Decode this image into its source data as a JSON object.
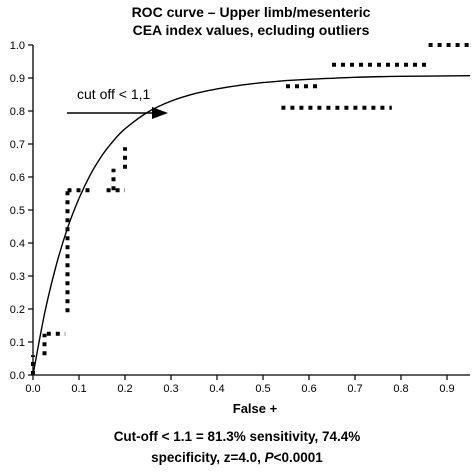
{
  "title": {
    "line1": "ROC curve – Upper limb/mesenteric",
    "line2": "CEA index values, ecluding outliers"
  },
  "caption": {
    "line1": "Cut-off < 1.1 = 81.3% sensitivity, 74.4%",
    "line2_prefix": "specificity, z=4.0, ",
    "line2_p": "P",
    "line2_suffix": "<0.0001"
  },
  "annotation": {
    "text": "cut off < 1,1"
  },
  "chart_data": {
    "type": "line",
    "xlabel": "False +",
    "ylabel": "",
    "xlim": [
      0,
      0.95
    ],
    "ylim": [
      0,
      1.0
    ],
    "x_ticks": [
      "0.0",
      "0.1",
      "0.2",
      "0.3",
      "0.4",
      "0.5",
      "0.6",
      "0.7",
      "0.8",
      "0.9"
    ],
    "y_ticks": [
      "0.0",
      "0.1",
      "0.2",
      "0.3",
      "0.4",
      "0.5",
      "0.6",
      "0.7",
      "0.8",
      "0.9",
      "1.0"
    ],
    "grid": false,
    "colors": {
      "curve": "#000000",
      "points": "#000000"
    },
    "series": [
      {
        "style": "fitted-curve",
        "x": [
          0,
          0.025,
          0.05,
          0.075,
          0.1,
          0.125,
          0.15,
          0.175,
          0.2,
          0.25,
          0.3,
          0.35,
          0.4,
          0.45,
          0.5,
          0.55,
          0.6,
          0.7,
          0.8,
          0.95
        ],
        "y": [
          0,
          0.185,
          0.33,
          0.445,
          0.535,
          0.608,
          0.665,
          0.71,
          0.746,
          0.797,
          0.83,
          0.852,
          0.867,
          0.878,
          0.886,
          0.892,
          0.896,
          0.902,
          0.905,
          0.907
        ]
      },
      {
        "style": "empirical-steps",
        "segments": [
          {
            "x": [
              0.0,
              0.0
            ],
            "y": [
              0.0,
              0.06
            ]
          },
          {
            "x": [
              0.025,
              0.025
            ],
            "y": [
              0.06,
              0.125
            ]
          },
          {
            "x": [
              0.03,
              0.07
            ],
            "y": [
              0.125,
              0.125
            ]
          },
          {
            "x": [
              0.075,
              0.075
            ],
            "y": [
              0.19,
              0.56
            ]
          },
          {
            "x": [
              0.075,
              0.13
            ],
            "y": [
              0.56,
              0.56
            ]
          },
          {
            "x": [
              0.16,
              0.2
            ],
            "y": [
              0.56,
              0.56
            ]
          },
          {
            "x": [
              0.175,
              0.175
            ],
            "y": [
              0.56,
              0.625
            ]
          },
          {
            "x": [
              0.2,
              0.2
            ],
            "y": [
              0.625,
              0.69
            ]
          },
          {
            "x": [
              0.55,
              0.62
            ],
            "y": [
              0.875,
              0.875
            ]
          },
          {
            "x": [
              0.54,
              0.78
            ],
            "y": [
              0.81,
              0.81
            ]
          },
          {
            "x": [
              0.65,
              0.86
            ],
            "y": [
              0.94,
              0.94
            ]
          },
          {
            "x": [
              0.86,
              0.95
            ],
            "y": [
              1.0,
              1.0
            ]
          }
        ]
      }
    ]
  }
}
